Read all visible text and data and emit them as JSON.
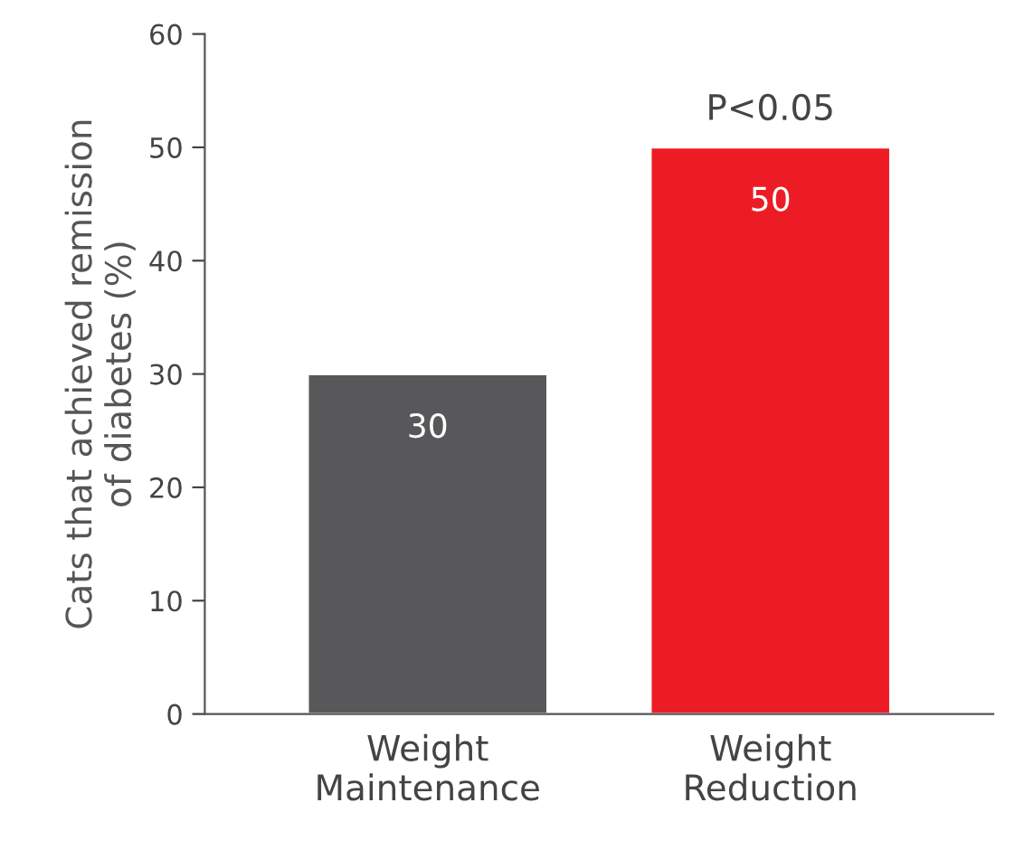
{
  "chart_data": {
    "type": "bar",
    "ylabel": "Cats that achieved remission\nof diabetes (%)",
    "categories": [
      "Weight\nMaintenance",
      "Weight\nReduction"
    ],
    "values": [
      30,
      50
    ],
    "colors": [
      "#58585a",
      "#ed1c24"
    ],
    "ylim": [
      0,
      60
    ],
    "yticks": [
      0,
      10,
      20,
      30,
      40,
      50,
      60
    ],
    "grid": false,
    "data_labels": true,
    "annotations": [
      {
        "text": "P<0.05",
        "x": "Weight\nReduction",
        "y": 50
      }
    ]
  }
}
